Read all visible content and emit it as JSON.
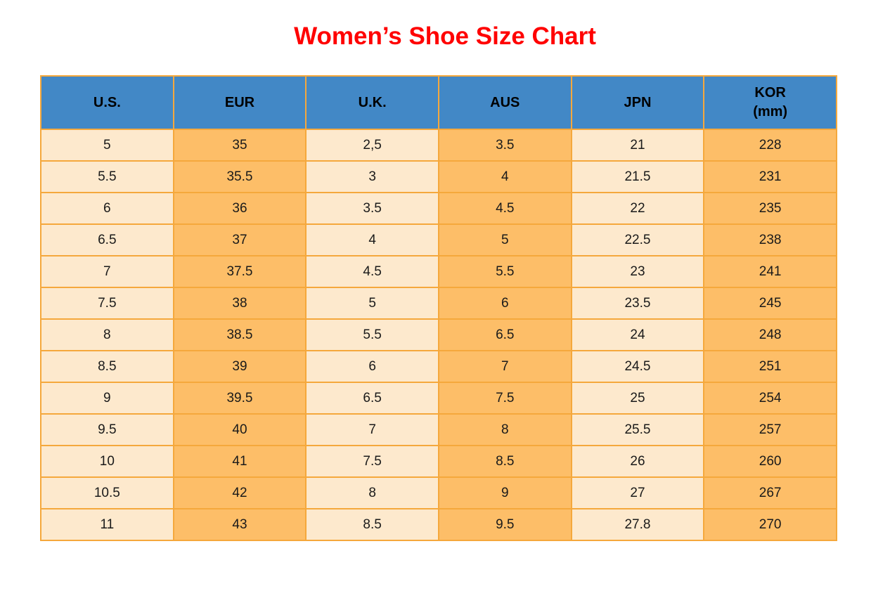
{
  "title": "Women’s Shoe Size Chart",
  "colors": {
    "header_bg": "#4288C6",
    "border": "#F5A83C",
    "column_light": "#FDE9CD",
    "column_dark": "#FDBE68",
    "title_red": "#FF0000"
  },
  "chart_data": {
    "type": "table",
    "title": "Women’s Shoe Size Chart",
    "columns": [
      "U.S.",
      "EUR",
      "U.K.",
      "AUS",
      "JPN",
      "KOR\n(mm)"
    ],
    "rows": [
      [
        "5",
        "35",
        "2,5",
        "3.5",
        "21",
        "228"
      ],
      [
        "5.5",
        "35.5",
        "3",
        "4",
        "21.5",
        "231"
      ],
      [
        "6",
        "36",
        "3.5",
        "4.5",
        "22",
        "235"
      ],
      [
        "6.5",
        "37",
        "4",
        "5",
        "22.5",
        "238"
      ],
      [
        "7",
        "37.5",
        "4.5",
        "5.5",
        "23",
        "241"
      ],
      [
        "7.5",
        "38",
        "5",
        "6",
        "23.5",
        "245"
      ],
      [
        "8",
        "38.5",
        "5.5",
        "6.5",
        "24",
        "248"
      ],
      [
        "8.5",
        "39",
        "6",
        "7",
        "24.5",
        "251"
      ],
      [
        "9",
        "39.5",
        "6.5",
        "7.5",
        "25",
        "254"
      ],
      [
        "9.5",
        "40",
        "7",
        "8",
        "25.5",
        "257"
      ],
      [
        "10",
        "41",
        "7.5",
        "8.5",
        "26",
        "260"
      ],
      [
        "10.5",
        "42",
        "8",
        "9",
        "27",
        "267"
      ],
      [
        "11",
        "43",
        "8.5",
        "9.5",
        "27.8",
        "270"
      ]
    ],
    "layout": {
      "grid": true,
      "column_striping": "light-dark alternating starting light",
      "header_style": "blue background, bold black text"
    }
  }
}
